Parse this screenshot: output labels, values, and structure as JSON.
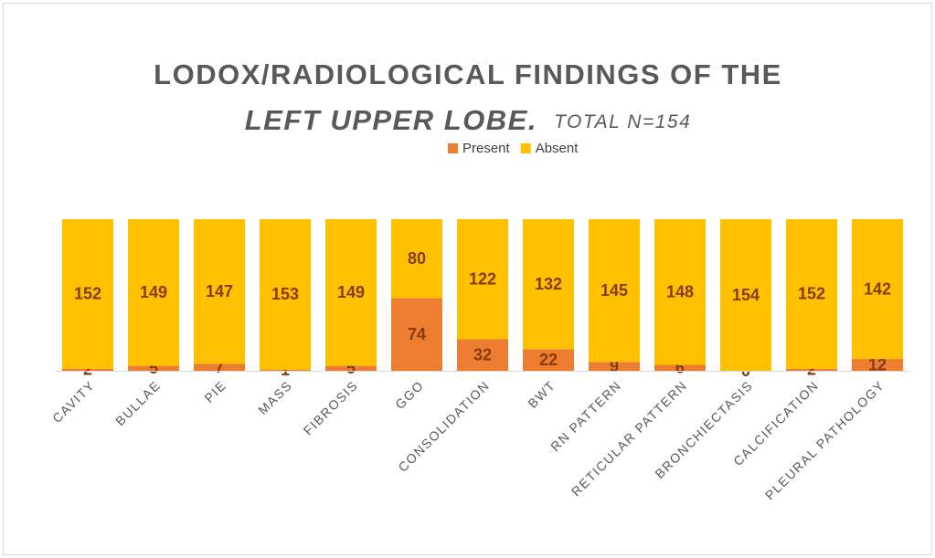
{
  "chart_data": {
    "type": "stacked_bar",
    "title": [
      "LODOX/RADIOLOGICAL FINDINGS OF THE",
      "LEFT UPPER LOBE.",
      "TOTAL N=154"
    ],
    "categories": [
      "CAVITY",
      "BULLAE",
      "PIE",
      "MASS",
      "FIBROSIS",
      "GGO",
      "CONSOLIDATION",
      "BWT",
      "RN PATTERN",
      "RETICULAR PATTERN",
      "BRONCHIECTASIS",
      "CALCIFICATION",
      "PLEURAL PATHOLOGY"
    ],
    "series": [
      {
        "name": "Present",
        "color": "#ed7d31",
        "values": [
          2,
          5,
          7,
          1,
          5,
          74,
          32,
          22,
          9,
          6,
          0,
          2,
          12
        ]
      },
      {
        "name": "Absent",
        "color": "#ffc000",
        "values": [
          152,
          149,
          147,
          153,
          149,
          80,
          122,
          132,
          145,
          148,
          154,
          152,
          142
        ]
      }
    ],
    "legend": "top"
  }
}
